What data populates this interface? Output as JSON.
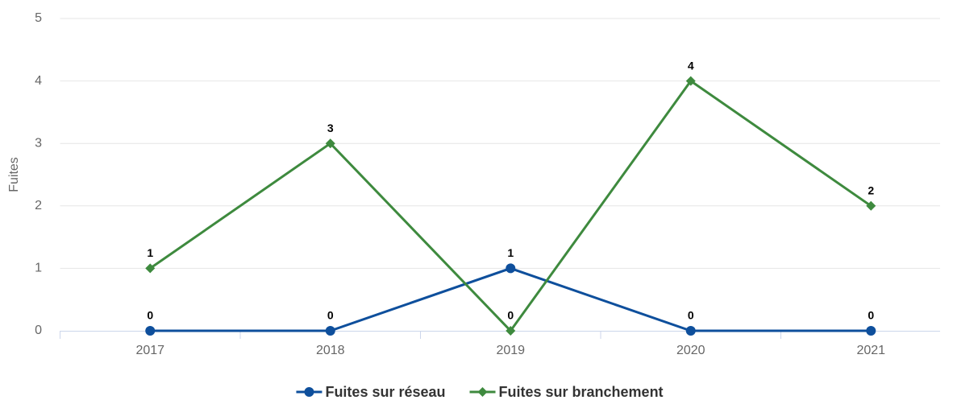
{
  "chart_data": {
    "type": "line",
    "categories": [
      "2017",
      "2018",
      "2019",
      "2020",
      "2021"
    ],
    "y_axis_label": "Fuites",
    "ylim": [
      0,
      5
    ],
    "yticks": [
      0,
      1,
      2,
      3,
      4,
      5
    ],
    "grid": true,
    "legend": "bottom",
    "series": [
      {
        "name": "Fuites sur réseau",
        "color": "#0e4f9c",
        "marker": "circle",
        "values": [
          0,
          0,
          1,
          0,
          0
        ]
      },
      {
        "name": "Fuites sur branchement",
        "color": "#3e8a3e",
        "marker": "diamond",
        "values": [
          1,
          3,
          0,
          4,
          2
        ]
      }
    ]
  }
}
